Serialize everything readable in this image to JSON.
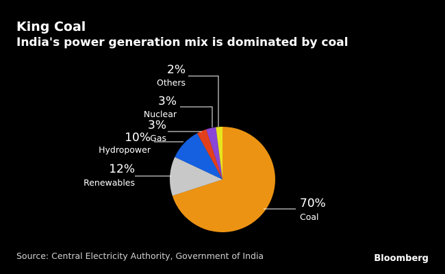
{
  "header": {
    "title": "King Coal",
    "subtitle": "India's power generation mix is dominated by coal"
  },
  "footer": {
    "source": "Source: Central Electricity Authority, Government of India",
    "brand": "Bloomberg"
  },
  "chart_data": {
    "type": "pie",
    "title": "King Coal",
    "subtitle": "India's power generation mix is dominated by coal",
    "unit": "%",
    "slices": [
      {
        "name": "Coal",
        "value": 70,
        "label": "70%",
        "color": "#ec9313"
      },
      {
        "name": "Renewables",
        "value": 12,
        "label": "12%",
        "color": "#c8c8c8"
      },
      {
        "name": "Hydropower",
        "value": 10,
        "label": "10%",
        "color": "#1460e0"
      },
      {
        "name": "Gas",
        "value": 3,
        "label": "3%",
        "color": "#e2401c"
      },
      {
        "name": "Nuclear",
        "value": 3,
        "label": "3%",
        "color": "#8a46d6"
      },
      {
        "name": "Others",
        "value": 2,
        "label": "2%",
        "color": "#e6e61e"
      }
    ]
  }
}
